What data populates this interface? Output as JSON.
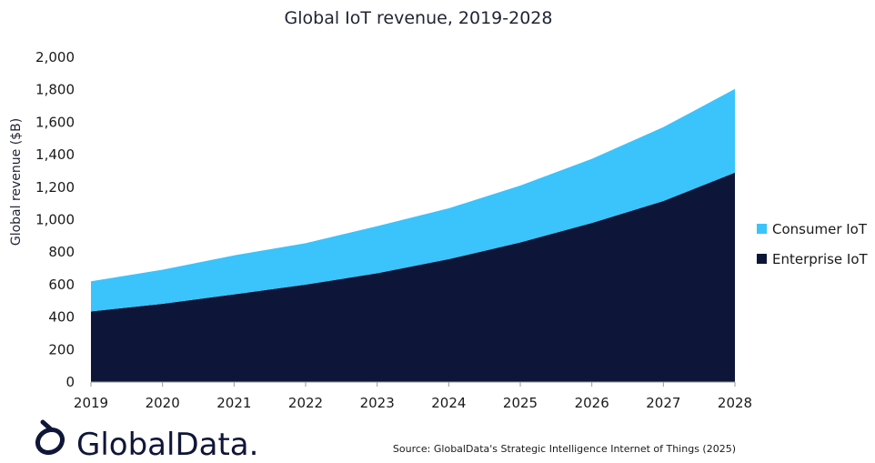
{
  "chart_data": {
    "type": "area",
    "stacked": true,
    "title": "Global IoT revenue, 2019-2028",
    "ylabel": "Global revenue ($B)",
    "xlabel": "",
    "x": [
      "2019",
      "2020",
      "2021",
      "2022",
      "2023",
      "2024",
      "2025",
      "2026",
      "2027",
      "2028"
    ],
    "ylim": [
      0,
      2000
    ],
    "yticks": [
      0,
      200,
      400,
      600,
      800,
      1000,
      1200,
      1400,
      1600,
      1800,
      2000
    ],
    "ytick_labels": [
      "0",
      "200",
      "400",
      "600",
      "800",
      "1,000",
      "1,200",
      "1,400",
      "1,600",
      "1,800",
      "2,000"
    ],
    "grid": false,
    "legend_position": "right",
    "series": [
      {
        "name": "Enterprise IoT",
        "color": "#0d1638",
        "values": [
          435,
          482,
          540,
          600,
          670,
          757,
          860,
          980,
          1115,
          1290
        ]
      },
      {
        "name": "Consumer IoT",
        "color": "#3bc3fb",
        "values": [
          185,
          210,
          240,
          255,
          290,
          313,
          350,
          395,
          455,
          515
        ]
      }
    ],
    "legend_order": [
      "Consumer IoT",
      "Enterprise IoT"
    ]
  },
  "footer": {
    "source": "Source: GlobalData's Strategic Intelligence Internet of Things (2025)",
    "brand": "GlobalData."
  },
  "logo": {
    "icon": "globaldata-logo-icon",
    "color": "#0f1638"
  }
}
